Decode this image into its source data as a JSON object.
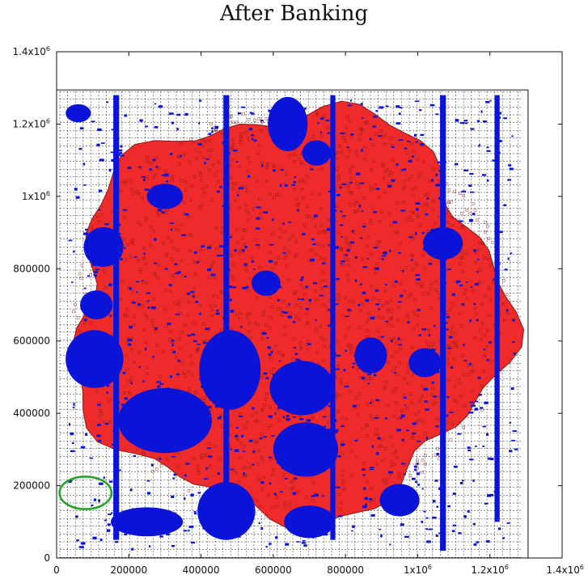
{
  "chart_data": {
    "type": "scatter",
    "title": "After Banking",
    "xlabel": "",
    "ylabel": "",
    "xlim": [
      0,
      1400000
    ],
    "ylim": [
      0,
      1400000
    ],
    "grid": true,
    "legend": "none",
    "x_ticks": [
      {
        "value": 0,
        "label": "0"
      },
      {
        "value": 200000,
        "label": "200000"
      },
      {
        "value": 400000,
        "label": "400000"
      },
      {
        "value": 600000,
        "label": "600000"
      },
      {
        "value": 800000,
        "label": "800000"
      },
      {
        "value": 1000000,
        "label": "1x10",
        "exp": "6"
      },
      {
        "value": 1200000,
        "label": "1.2x10",
        "exp": "6"
      },
      {
        "value": 1400000,
        "label": "1.4x10",
        "exp": "6"
      }
    ],
    "y_ticks": [
      {
        "value": 0,
        "label": "0"
      },
      {
        "value": 200000,
        "label": "200000"
      },
      {
        "value": 400000,
        "label": "400000"
      },
      {
        "value": 600000,
        "label": "600000"
      },
      {
        "value": 800000,
        "label": "800000"
      },
      {
        "value": 1000000,
        "label": "1x10",
        "exp": "6"
      },
      {
        "value": 1200000,
        "label": "1.2x10",
        "exp": "6"
      },
      {
        "value": 1400000,
        "label": "1.4x10",
        "exp": "6"
      }
    ],
    "die_region": {
      "x": [
        0,
        1290000
      ],
      "y": [
        0,
        1290000
      ]
    },
    "colors": {
      "cells": "#ee2a2a",
      "cell_outline": "#8a1a1a",
      "banked": "#0a14d8",
      "highlight": "#21a321",
      "grid": "#222222"
    },
    "series": [
      {
        "kind": "cells",
        "blobs": [
          {
            "cx": 640000,
            "cy": 680000,
            "rx": 640000,
            "ry": 600000
          }
        ]
      },
      {
        "kind": "banked",
        "vertical_bars": [
          {
            "x": 165000,
            "y": [
              50000,
              1280000
            ],
            "width": 16000
          },
          {
            "x": 470000,
            "y": [
              50000,
              1280000
            ],
            "width": 16000
          },
          {
            "x": 765000,
            "y": [
              50000,
              1280000
            ],
            "width": 14000
          },
          {
            "x": 1070000,
            "y": [
              20000,
              1280000
            ],
            "width": 16000
          },
          {
            "x": 1220000,
            "y": [
              100000,
              1280000
            ],
            "width": 14000
          }
        ],
        "clusters": [
          {
            "cx": 60000,
            "cy": 1230000,
            "rx": 35000,
            "ry": 25000
          },
          {
            "cx": 640000,
            "cy": 1200000,
            "rx": 55000,
            "ry": 75000
          },
          {
            "cx": 720000,
            "cy": 1120000,
            "rx": 40000,
            "ry": 35000
          },
          {
            "cx": 300000,
            "cy": 1000000,
            "rx": 50000,
            "ry": 35000
          },
          {
            "cx": 130000,
            "cy": 860000,
            "rx": 55000,
            "ry": 55000
          },
          {
            "cx": 1070000,
            "cy": 870000,
            "rx": 55000,
            "ry": 45000
          },
          {
            "cx": 580000,
            "cy": 760000,
            "rx": 40000,
            "ry": 35000
          },
          {
            "cx": 110000,
            "cy": 700000,
            "rx": 45000,
            "ry": 40000
          },
          {
            "cx": 105000,
            "cy": 550000,
            "rx": 80000,
            "ry": 80000
          },
          {
            "cx": 480000,
            "cy": 520000,
            "rx": 85000,
            "ry": 110000
          },
          {
            "cx": 870000,
            "cy": 560000,
            "rx": 45000,
            "ry": 50000
          },
          {
            "cx": 1020000,
            "cy": 540000,
            "rx": 45000,
            "ry": 40000
          },
          {
            "cx": 680000,
            "cy": 470000,
            "rx": 90000,
            "ry": 75000
          },
          {
            "cx": 300000,
            "cy": 380000,
            "rx": 130000,
            "ry": 90000
          },
          {
            "cx": 690000,
            "cy": 300000,
            "rx": 90000,
            "ry": 75000
          },
          {
            "cx": 250000,
            "cy": 100000,
            "rx": 100000,
            "ry": 40000
          },
          {
            "cx": 470000,
            "cy": 130000,
            "rx": 80000,
            "ry": 80000
          },
          {
            "cx": 700000,
            "cy": 100000,
            "rx": 70000,
            "ry": 45000
          },
          {
            "cx": 950000,
            "cy": 160000,
            "rx": 55000,
            "ry": 45000
          }
        ]
      }
    ],
    "annotations": [
      {
        "type": "ellipse",
        "cx": 80000,
        "cy": 180000,
        "rx": 80000,
        "ry": 45000
      }
    ]
  }
}
